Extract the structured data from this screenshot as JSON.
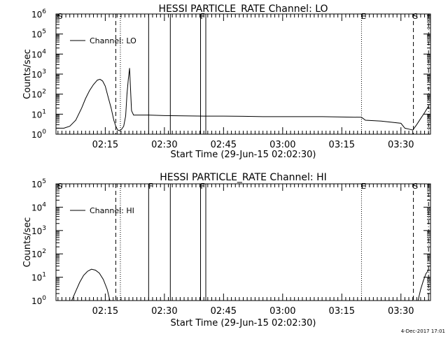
{
  "colors": {
    "background": "#ffffff",
    "foreground": "#000000"
  },
  "footer": {
    "timestamp": "4-Dec-2017 17:01"
  },
  "chart_data": [
    {
      "type": "line",
      "title": "HESSI PARTICLE_RATE Channel: LO",
      "xlabel": "Start Time (29-Jun-15 02:02:30)",
      "ylabel": "Counts/sec",
      "yscale": "log",
      "xlim": [
        "02:02:30",
        "03:37:30"
      ],
      "ylim": [
        1,
        1000000
      ],
      "x_ticks": [
        "02:15",
        "02:30",
        "02:45",
        "03:00",
        "03:15",
        "03:30"
      ],
      "y_ticks": [
        "10^0",
        "10^1",
        "10^2",
        "10^3",
        "10^4",
        "10^5",
        "10^6"
      ],
      "legend": {
        "position": "top-left",
        "entries": [
          {
            "label": "Channel: LO",
            "style": "solid"
          }
        ]
      },
      "markers": [
        {
          "time": "02:03:00",
          "label": "S",
          "style": "none"
        },
        {
          "time": "02:17:40",
          "label": "",
          "style": "dashed"
        },
        {
          "time": "02:18:50",
          "label": "",
          "style": "dotted"
        },
        {
          "time": "02:26:00",
          "label": "",
          "style": "solid"
        },
        {
          "time": "02:31:30",
          "label": "",
          "style": "solid"
        },
        {
          "time": "02:39:10",
          "label": "F",
          "style": "solid"
        },
        {
          "time": "02:40:30",
          "label": "",
          "style": "solid"
        },
        {
          "time": "03:20:00",
          "label": "E",
          "style": "dotted"
        },
        {
          "time": "03:33:10",
          "label": "S",
          "style": "dashed"
        },
        {
          "time": "03:37:00",
          "label": "",
          "style": "dashdot"
        }
      ],
      "series": [
        {
          "x": [
            "02:02:30",
            "02:04:30",
            "02:06:00",
            "02:07:30",
            "02:09:00",
            "02:10:00",
            "02:11:00",
            "02:12:00",
            "02:13:00",
            "02:13:40",
            "02:14:20",
            "02:15:00",
            "02:15:40",
            "02:16:30",
            "02:17:10",
            "02:17:40",
            "02:18:10",
            "02:18:40",
            "02:19:10",
            "02:19:40",
            "02:20:10",
            "02:20:30",
            "02:20:50",
            "02:21:10",
            "02:21:40",
            "02:22:10",
            "02:23:00",
            "02:26:00",
            "02:30:00",
            "02:35:00",
            "02:40:00",
            "02:45:00",
            "02:50:00",
            "02:55:00",
            "03:00:00",
            "03:05:00",
            "03:10:00",
            "03:15:00",
            "03:20:00",
            "03:21:00",
            "03:25:00",
            "03:30:00",
            "03:31:00",
            "03:32:00",
            "03:33:00",
            "03:34:00",
            "03:35:00",
            "03:36:00",
            "03:37:00"
          ],
          "values": [
            2,
            2,
            2.5,
            5,
            20,
            60,
            150,
            300,
            500,
            550,
            450,
            250,
            80,
            20,
            5,
            2.5,
            1.6,
            1.5,
            1.8,
            2.5,
            8,
            100,
            500,
            2000,
            15,
            9,
            9,
            9,
            8.5,
            8.2,
            8,
            8,
            7.8,
            7.5,
            7.5,
            7.5,
            7.5,
            7.2,
            7,
            5,
            4.5,
            3.5,
            2,
            1.8,
            1.6,
            3,
            6,
            12,
            25
          ]
        }
      ]
    },
    {
      "type": "line",
      "title": "HESSI PARTICLE_RATE Channel: HI",
      "xlabel": "Start Time (29-Jun-15 02:02:30)",
      "ylabel": "Counts/sec",
      "yscale": "log",
      "xlim": [
        "02:02:30",
        "03:37:30"
      ],
      "ylim": [
        1,
        100000
      ],
      "x_ticks": [
        "02:15",
        "02:30",
        "02:45",
        "03:00",
        "03:15",
        "03:30"
      ],
      "y_ticks": [
        "10^0",
        "10^1",
        "10^2",
        "10^3",
        "10^4",
        "10^5"
      ],
      "legend": {
        "position": "top-left",
        "entries": [
          {
            "label": "Channel: HI",
            "style": "solid"
          }
        ]
      },
      "markers": [
        {
          "time": "02:03:00",
          "label": "S",
          "style": "none"
        },
        {
          "time": "02:17:40",
          "label": "",
          "style": "dashed"
        },
        {
          "time": "02:18:50",
          "label": "",
          "style": "dotted"
        },
        {
          "time": "02:26:00",
          "label": "F",
          "style": "solid"
        },
        {
          "time": "02:31:30",
          "label": "",
          "style": "solid"
        },
        {
          "time": "02:39:10",
          "label": "F",
          "style": "solid"
        },
        {
          "time": "02:40:30",
          "label": "",
          "style": "solid"
        },
        {
          "time": "03:20:00",
          "label": "E",
          "style": "dotted"
        },
        {
          "time": "03:33:10",
          "label": "S",
          "style": "dashed"
        },
        {
          "time": "03:37:00",
          "label": "",
          "style": "dashdot"
        }
      ],
      "series": [
        {
          "x": [
            "02:06:30",
            "02:07:30",
            "02:08:30",
            "02:09:30",
            "02:10:30",
            "02:11:30",
            "02:12:30",
            "02:13:30",
            "02:14:30",
            "02:15:30",
            "02:16:10"
          ],
          "values": [
            1,
            2.5,
            6,
            12,
            18,
            22,
            20,
            15,
            8,
            3,
            1
          ]
        },
        {
          "x": [
            "03:34:20",
            "03:35:00",
            "03:35:40",
            "03:36:20",
            "03:37:00"
          ],
          "values": [
            1,
            3,
            7,
            14,
            20
          ]
        }
      ]
    }
  ]
}
